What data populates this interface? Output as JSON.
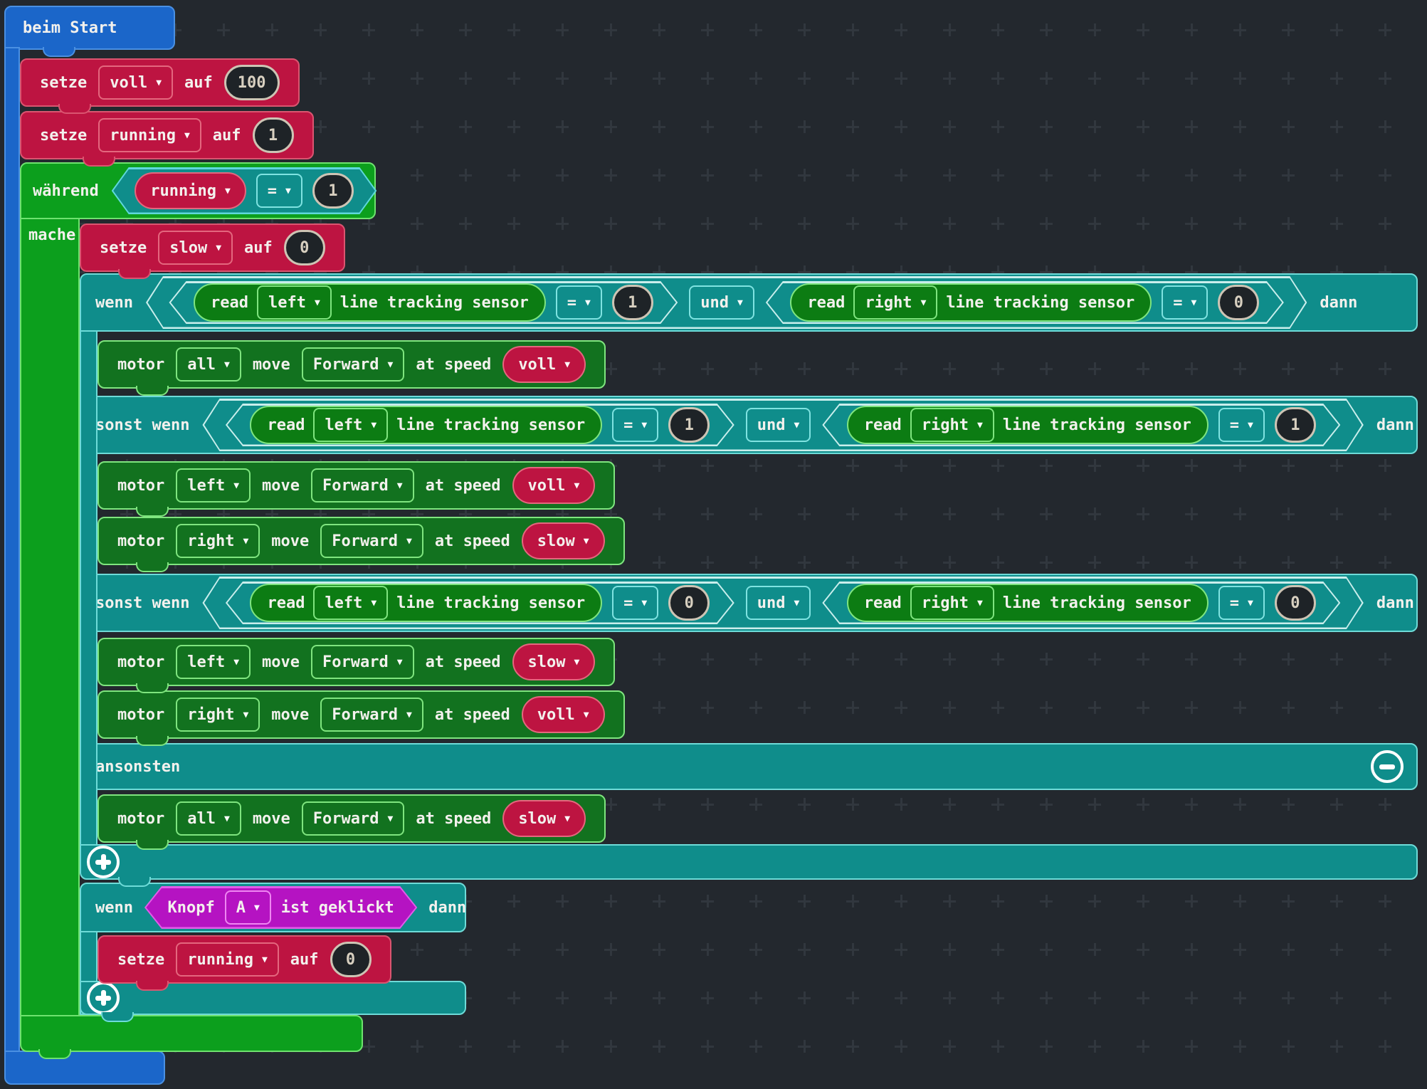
{
  "on_start": {
    "label": "beim Start"
  },
  "set1": {
    "kw": "setze",
    "var": "voll",
    "aux": "auf",
    "val": "100"
  },
  "set2": {
    "kw": "setze",
    "var": "running",
    "aux": "auf",
    "val": "1"
  },
  "set3": {
    "kw": "setze",
    "var": "slow",
    "aux": "auf",
    "val": "0"
  },
  "set4": {
    "kw": "setze",
    "var": "running",
    "aux": "auf",
    "val": "0"
  },
  "while": {
    "kw": "während",
    "do": "mache",
    "cond": {
      "var": "running",
      "op": "=",
      "val": "1"
    }
  },
  "if1": {
    "else_kw": "ansonsten",
    "rows": [
      {
        "kw": "wenn",
        "and": "und",
        "then": "dann",
        "c1": {
          "read": "read",
          "port": "left",
          "sensor": "line tracking sensor",
          "op": "=",
          "val": "1"
        },
        "c2": {
          "read": "read",
          "port": "right",
          "sensor": "line tracking sensor",
          "op": "=",
          "val": "0"
        }
      },
      {
        "kw": "sonst wenn",
        "and": "und",
        "then": "dann",
        "c1": {
          "read": "read",
          "port": "left",
          "sensor": "line tracking sensor",
          "op": "=",
          "val": "1"
        },
        "c2": {
          "read": "read",
          "port": "right",
          "sensor": "line tracking sensor",
          "op": "=",
          "val": "1"
        }
      },
      {
        "kw": "sonst wenn",
        "and": "und",
        "then": "dann",
        "c1": {
          "read": "read",
          "port": "left",
          "sensor": "line tracking sensor",
          "op": "=",
          "val": "0"
        },
        "c2": {
          "read": "read",
          "port": "right",
          "sensor": "line tracking sensor",
          "op": "=",
          "val": "0"
        }
      }
    ]
  },
  "motors": [
    {
      "kw": "motor",
      "port": "all",
      "move": "move",
      "dir": "Forward",
      "at": "at speed",
      "speed": "voll"
    },
    {
      "kw": "motor",
      "port": "left",
      "move": "move",
      "dir": "Forward",
      "at": "at speed",
      "speed": "voll"
    },
    {
      "kw": "motor",
      "port": "right",
      "move": "move",
      "dir": "Forward",
      "at": "at speed",
      "speed": "slow"
    },
    {
      "kw": "motor",
      "port": "left",
      "move": "move",
      "dir": "Forward",
      "at": "at speed",
      "speed": "slow"
    },
    {
      "kw": "motor",
      "port": "right",
      "move": "move",
      "dir": "Forward",
      "at": "at speed",
      "speed": "voll"
    },
    {
      "kw": "motor",
      "port": "all",
      "move": "move",
      "dir": "Forward",
      "at": "at speed",
      "speed": "slow"
    }
  ],
  "if2": {
    "kw": "wenn",
    "then": "dann",
    "btn": {
      "kw": "Knopf",
      "id": "A",
      "suffix": "ist geklickt"
    }
  },
  "colors": {
    "background": "#23282e",
    "on_start_blue": "#1b66c9",
    "variable_red": "#bd1441",
    "loop_green": "#0c9f1d",
    "motor_green": "#12721f",
    "logic_teal": "#0f8d8b",
    "input_magenta": "#b513c2",
    "number_field_border": "#cdc4b4"
  }
}
